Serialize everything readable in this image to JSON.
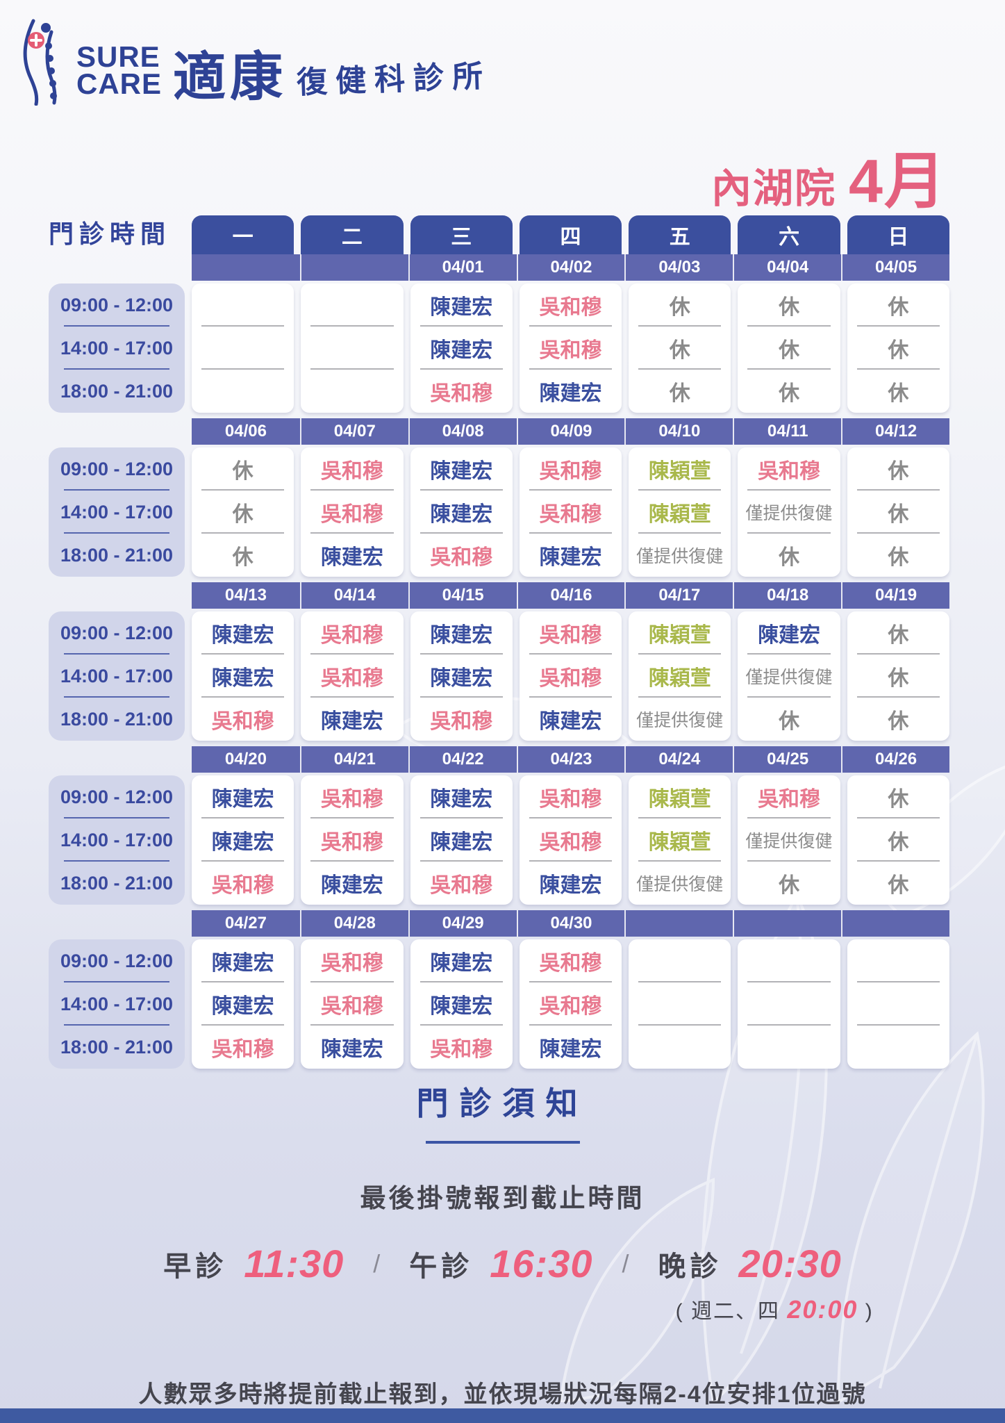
{
  "brand": {
    "name_en_line1": "SURE",
    "name_en_line2": "CARE",
    "name_cn": "適康",
    "name_cn_suffix": "復健科診所"
  },
  "header": {
    "branch": "內湖院",
    "month": "4月",
    "schedule_label": "門診時間"
  },
  "table": {
    "day_headers": [
      "一",
      "二",
      "三",
      "四",
      "五",
      "六",
      "日"
    ],
    "time_slots": [
      "09:00 - 12:00",
      "14:00 - 17:00",
      "18:00 - 21:00"
    ],
    "weeks": [
      {
        "dates": [
          "",
          "",
          "04/01",
          "04/02",
          "04/03",
          "04/04",
          "04/05"
        ],
        "slots": [
          [
            "",
            "",
            "陳建宏",
            "吳和穆",
            "休",
            "休",
            "休"
          ],
          [
            "",
            "",
            "陳建宏",
            "吳和穆",
            "休",
            "休",
            "休"
          ],
          [
            "",
            "",
            "吳和穆",
            "陳建宏",
            "休",
            "休",
            "休"
          ]
        ]
      },
      {
        "dates": [
          "04/06",
          "04/07",
          "04/08",
          "04/09",
          "04/10",
          "04/11",
          "04/12"
        ],
        "slots": [
          [
            "休",
            "吳和穆",
            "陳建宏",
            "吳和穆",
            "陳穎萱",
            "吳和穆",
            "休"
          ],
          [
            "休",
            "吳和穆",
            "陳建宏",
            "吳和穆",
            "陳穎萱",
            "僅提供復健",
            "休"
          ],
          [
            "休",
            "陳建宏",
            "吳和穆",
            "陳建宏",
            "僅提供復健",
            "休",
            "休"
          ]
        ]
      },
      {
        "dates": [
          "04/13",
          "04/14",
          "04/15",
          "04/16",
          "04/17",
          "04/18",
          "04/19"
        ],
        "slots": [
          [
            "陳建宏",
            "吳和穆",
            "陳建宏",
            "吳和穆",
            "陳穎萱",
            "陳建宏",
            "休"
          ],
          [
            "陳建宏",
            "吳和穆",
            "陳建宏",
            "吳和穆",
            "陳穎萱",
            "僅提供復健",
            "休"
          ],
          [
            "吳和穆",
            "陳建宏",
            "吳和穆",
            "陳建宏",
            "僅提供復健",
            "休",
            "休"
          ]
        ]
      },
      {
        "dates": [
          "04/20",
          "04/21",
          "04/22",
          "04/23",
          "04/24",
          "04/25",
          "04/26"
        ],
        "slots": [
          [
            "陳建宏",
            "吳和穆",
            "陳建宏",
            "吳和穆",
            "陳穎萱",
            "吳和穆",
            "休"
          ],
          [
            "陳建宏",
            "吳和穆",
            "陳建宏",
            "吳和穆",
            "陳穎萱",
            "僅提供復健",
            "休"
          ],
          [
            "吳和穆",
            "陳建宏",
            "吳和穆",
            "陳建宏",
            "僅提供復健",
            "休",
            "休"
          ]
        ]
      },
      {
        "dates": [
          "04/27",
          "04/28",
          "04/29",
          "04/30",
          "",
          "",
          ""
        ],
        "slots": [
          [
            "陳建宏",
            "吳和穆",
            "陳建宏",
            "吳和穆",
            "",
            "",
            ""
          ],
          [
            "陳建宏",
            "吳和穆",
            "陳建宏",
            "吳和穆",
            "",
            "",
            ""
          ],
          [
            "吳和穆",
            "陳建宏",
            "吳和穆",
            "陳建宏",
            "",
            "",
            ""
          ]
        ]
      }
    ]
  },
  "legend_colors": {
    "陳建宏": "#3a4f9f",
    "吳和穆": "#e8798f",
    "陳穎萱": "#a9b84b",
    "休": "#8b8b8b",
    "僅提供復健": "#8b8b8b"
  },
  "notice": {
    "title": "門診須知",
    "deadline_title": "最後掛號報到截止時間",
    "sessions": [
      {
        "label": "早診",
        "time": "11:30"
      },
      {
        "label": "午診",
        "time": "16:30"
      },
      {
        "label": "晚診",
        "time": "20:30"
      }
    ],
    "separator": "/",
    "exception_open": "(",
    "exception_label": "週二、四",
    "exception_time": "20:00",
    "exception_close": ")",
    "bottom_note": "人數眾多時將提前截止報到，並依現場狀況每隔2-4位安排1位過號"
  }
}
